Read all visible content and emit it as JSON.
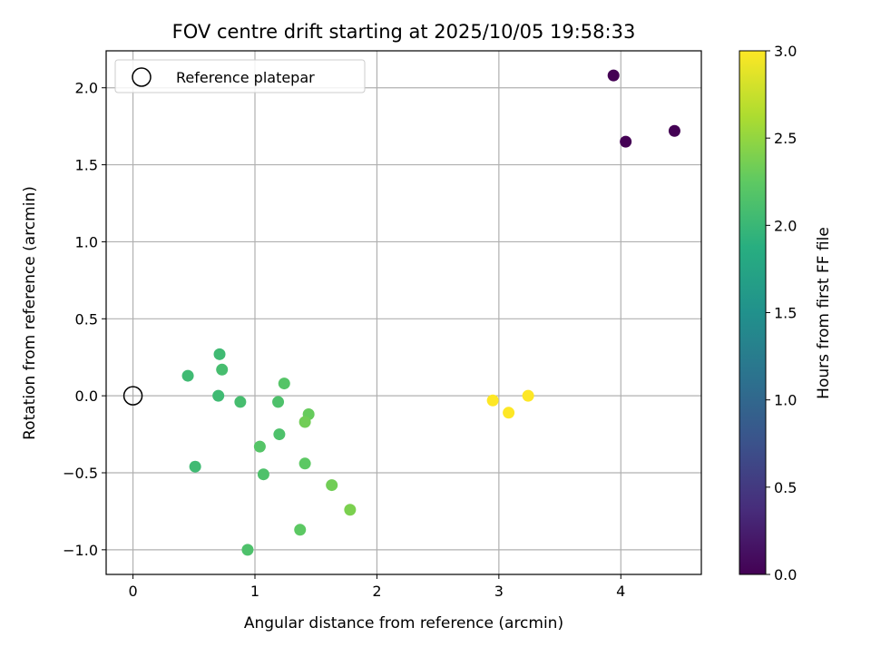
{
  "chart_data": {
    "type": "scatter",
    "title": "FOV centre drift starting at 2025/10/05 19:58:33",
    "xlabel": "Angular distance from reference (arcmin)",
    "ylabel": "Rotation from reference (arcmin)",
    "xlim": [
      -0.22,
      4.66
    ],
    "ylim": [
      -1.16,
      2.24
    ],
    "xticks": [
      0,
      1,
      2,
      3,
      4
    ],
    "xtick_labels": [
      "0",
      "1",
      "2",
      "3",
      "4"
    ],
    "yticks": [
      -1.0,
      -0.5,
      0.0,
      0.5,
      1.0,
      1.5,
      2.0
    ],
    "ytick_labels": [
      "−1.0",
      "−0.5",
      "0.0",
      "0.5",
      "1.0",
      "1.5",
      "2.0"
    ],
    "grid": true,
    "legend": {
      "position": "top-left",
      "entries": [
        "Reference platepar"
      ]
    },
    "reference_point": {
      "x": 0,
      "y": 0,
      "label": "Reference platepar"
    },
    "colorbar": {
      "label": "Hours from first FF file",
      "colormap": "viridis",
      "range": [
        0.0,
        3.0
      ],
      "ticks": [
        0.0,
        0.5,
        1.0,
        1.5,
        2.0,
        2.5,
        3.0
      ],
      "tick_labels": [
        "0.0",
        "0.5",
        "1.0",
        "1.5",
        "2.0",
        "2.5",
        "3.0"
      ]
    },
    "points": [
      {
        "x": 3.94,
        "y": 2.08,
        "c": 0.0
      },
      {
        "x": 4.04,
        "y": 1.65,
        "c": 0.0
      },
      {
        "x": 4.44,
        "y": 1.72,
        "c": 0.0
      },
      {
        "x": 0.71,
        "y": 0.27,
        "c": 2.05
      },
      {
        "x": 0.45,
        "y": 0.13,
        "c": 2.05
      },
      {
        "x": 0.73,
        "y": 0.17,
        "c": 2.1
      },
      {
        "x": 0.7,
        "y": 0.0,
        "c": 2.05
      },
      {
        "x": 0.88,
        "y": -0.04,
        "c": 2.1
      },
      {
        "x": 1.24,
        "y": 0.08,
        "c": 2.2
      },
      {
        "x": 1.19,
        "y": -0.04,
        "c": 2.15
      },
      {
        "x": 1.44,
        "y": -0.12,
        "c": 2.3
      },
      {
        "x": 1.41,
        "y": -0.17,
        "c": 2.35
      },
      {
        "x": 1.2,
        "y": -0.25,
        "c": 2.15
      },
      {
        "x": 1.04,
        "y": -0.33,
        "c": 2.2
      },
      {
        "x": 0.51,
        "y": -0.46,
        "c": 2.05
      },
      {
        "x": 1.07,
        "y": -0.51,
        "c": 2.15
      },
      {
        "x": 1.41,
        "y": -0.44,
        "c": 2.25
      },
      {
        "x": 1.63,
        "y": -0.58,
        "c": 2.35
      },
      {
        "x": 1.78,
        "y": -0.74,
        "c": 2.4
      },
      {
        "x": 1.37,
        "y": -0.87,
        "c": 2.25
      },
      {
        "x": 0.94,
        "y": -1.0,
        "c": 2.15
      },
      {
        "x": 2.95,
        "y": -0.03,
        "c": 3.0
      },
      {
        "x": 3.08,
        "y": -0.11,
        "c": 3.0
      },
      {
        "x": 3.24,
        "y": 0.0,
        "c": 3.0
      }
    ]
  }
}
